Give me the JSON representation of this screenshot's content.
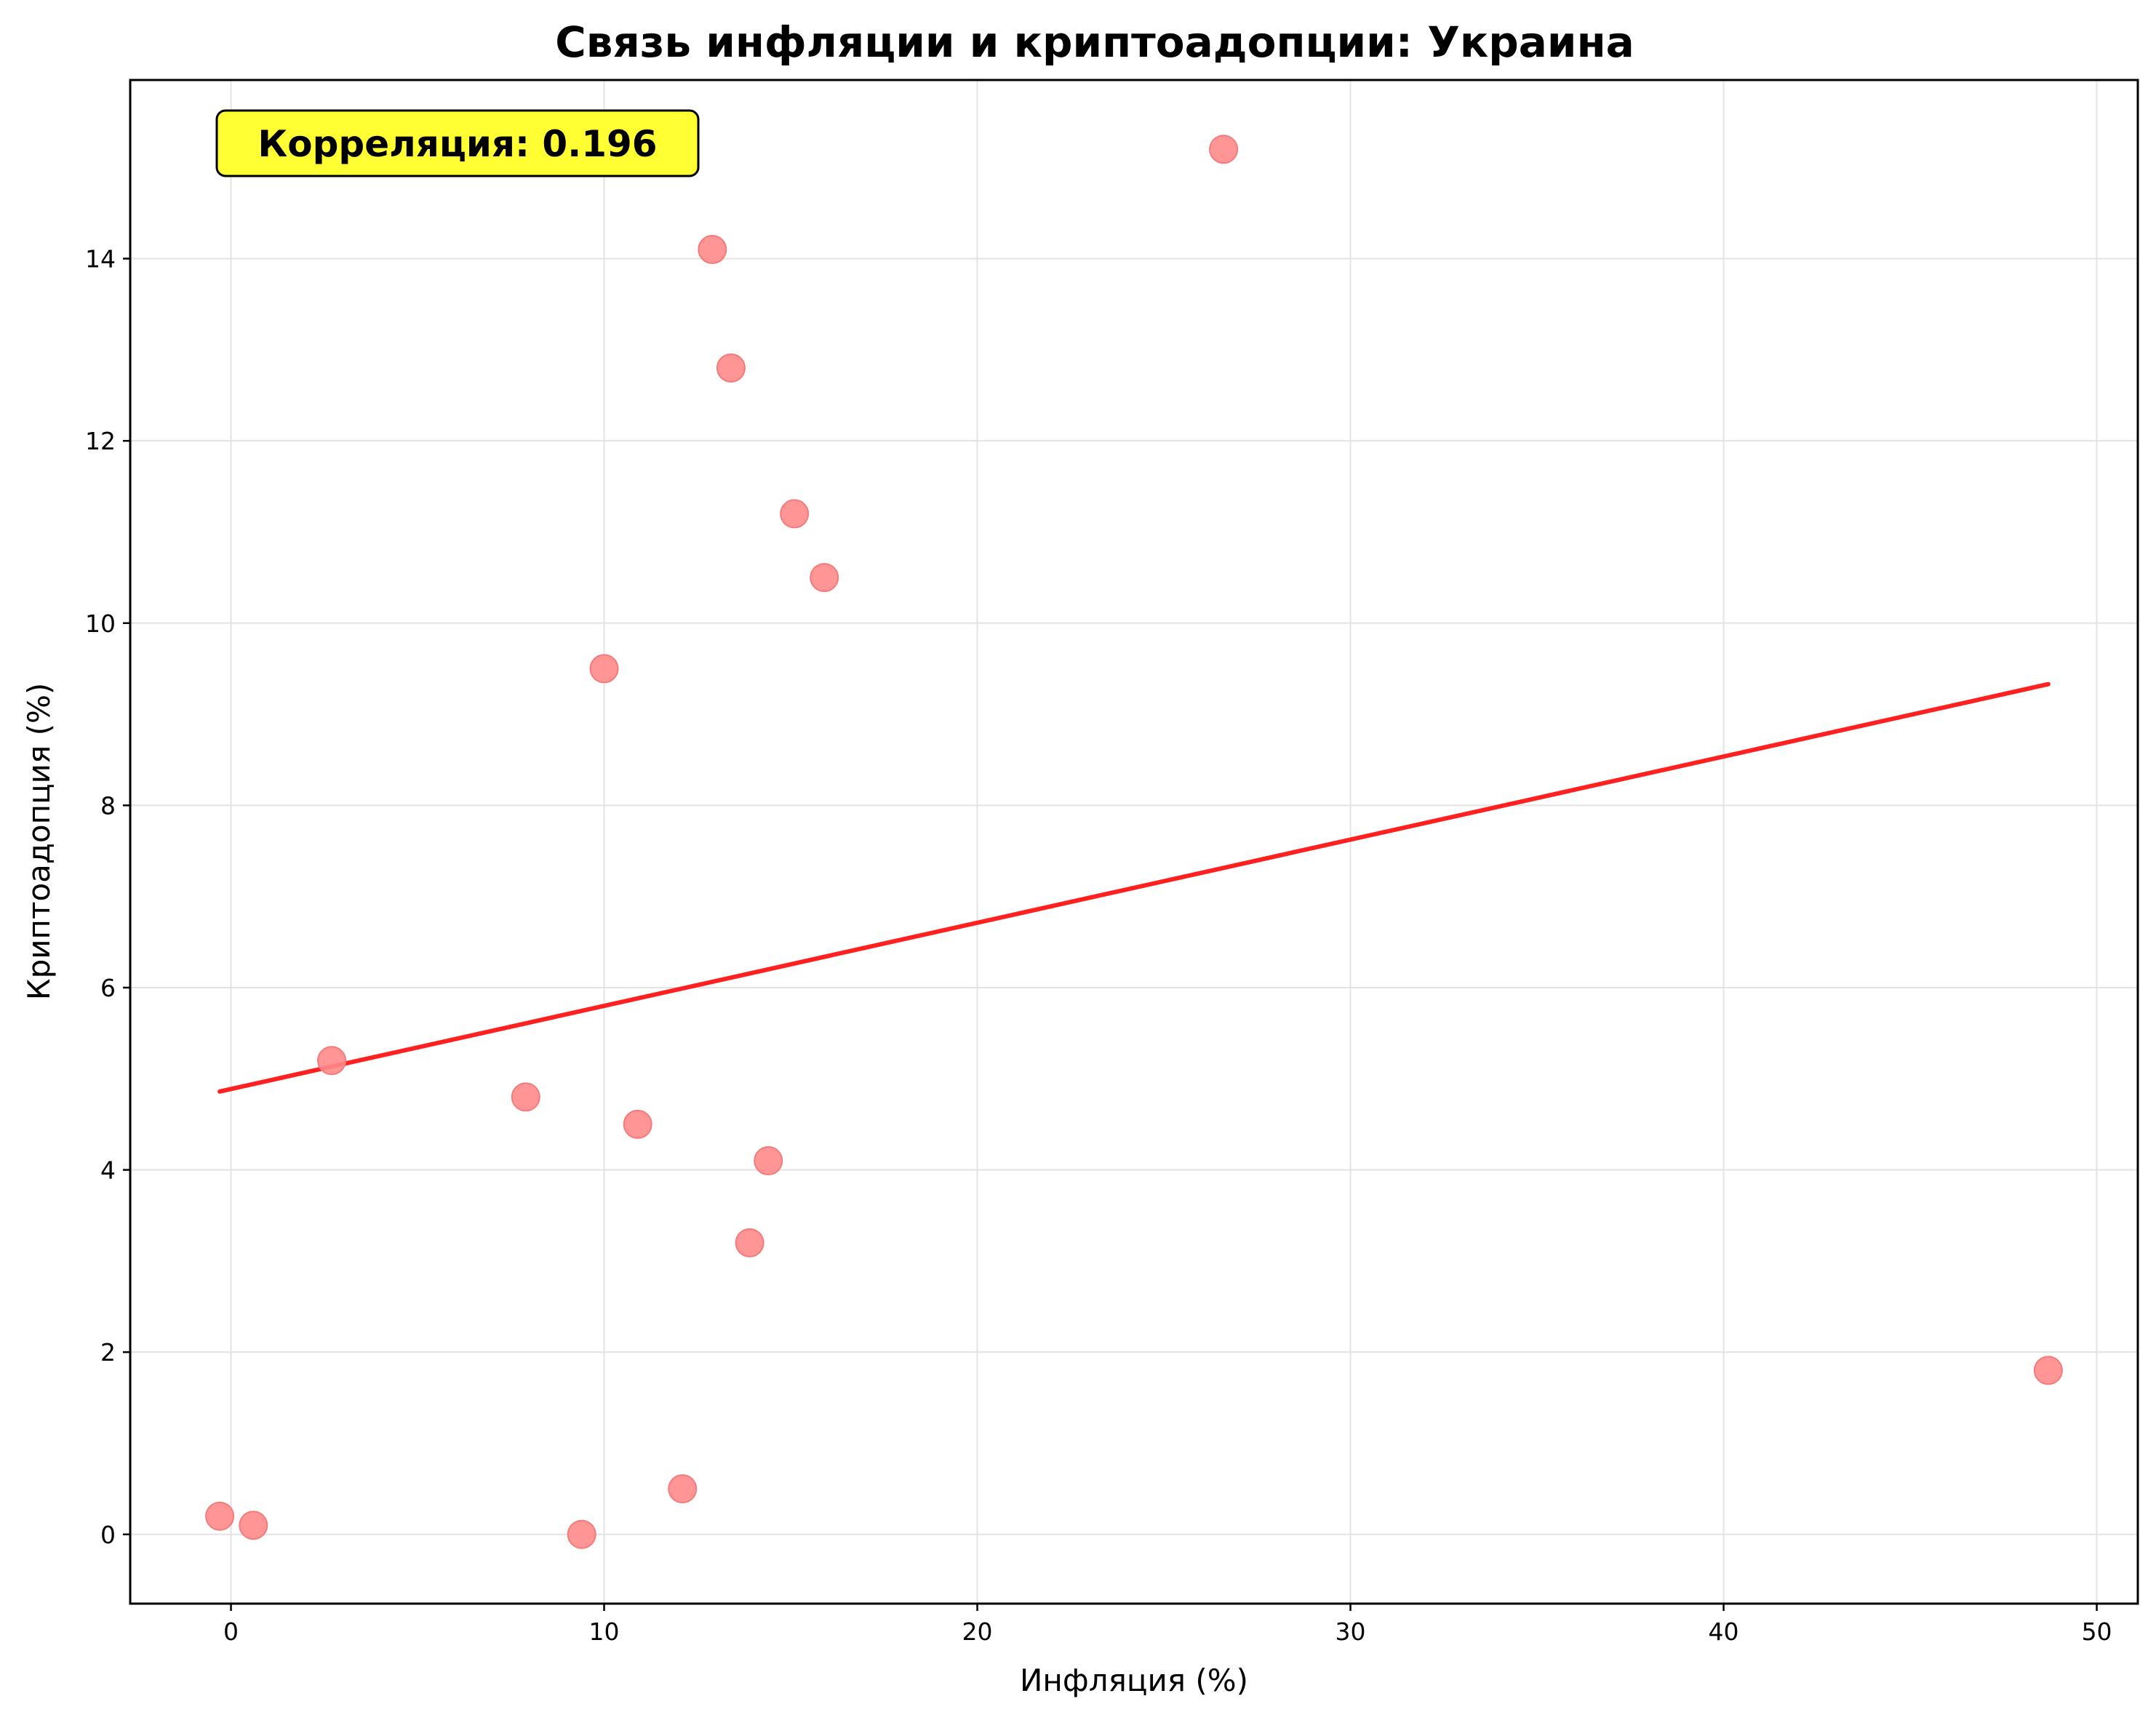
{
  "chart_data": {
    "type": "scatter",
    "title": "Связь инфляции и криптоадопции: Украина",
    "xlabel": "Инфляция (%)",
    "ylabel": "Криптоадопция (%)",
    "xlim": [
      -2.7,
      51.1
    ],
    "ylim": [
      -0.76,
      15.96
    ],
    "x_ticks": [
      0,
      10,
      20,
      30,
      40,
      50
    ],
    "y_ticks": [
      0,
      2,
      4,
      6,
      8,
      10,
      12,
      14
    ],
    "grid": true,
    "annotation": "Корреляция: 0.196",
    "points": [
      {
        "x": -0.3,
        "y": 0.2
      },
      {
        "x": 0.6,
        "y": 0.1
      },
      {
        "x": 2.7,
        "y": 5.2
      },
      {
        "x": 7.9,
        "y": 4.8
      },
      {
        "x": 9.4,
        "y": 0.0
      },
      {
        "x": 10.0,
        "y": 9.5
      },
      {
        "x": 10.9,
        "y": 4.5
      },
      {
        "x": 12.1,
        "y": 0.5
      },
      {
        "x": 12.9,
        "y": 14.1
      },
      {
        "x": 13.4,
        "y": 12.8
      },
      {
        "x": 13.9,
        "y": 3.2
      },
      {
        "x": 14.4,
        "y": 4.1
      },
      {
        "x": 15.1,
        "y": 11.2
      },
      {
        "x": 15.9,
        "y": 10.5
      },
      {
        "x": 26.6,
        "y": 15.2
      },
      {
        "x": 48.7,
        "y": 1.8
      }
    ],
    "trend_line": {
      "x": [
        -0.3,
        48.7
      ],
      "y": [
        4.86,
        9.33
      ]
    },
    "colors": {
      "points": "#ff8a8a",
      "trend": "#ff2020",
      "annotation_bg": "#ffff33",
      "grid": "#e3e3e3"
    }
  }
}
